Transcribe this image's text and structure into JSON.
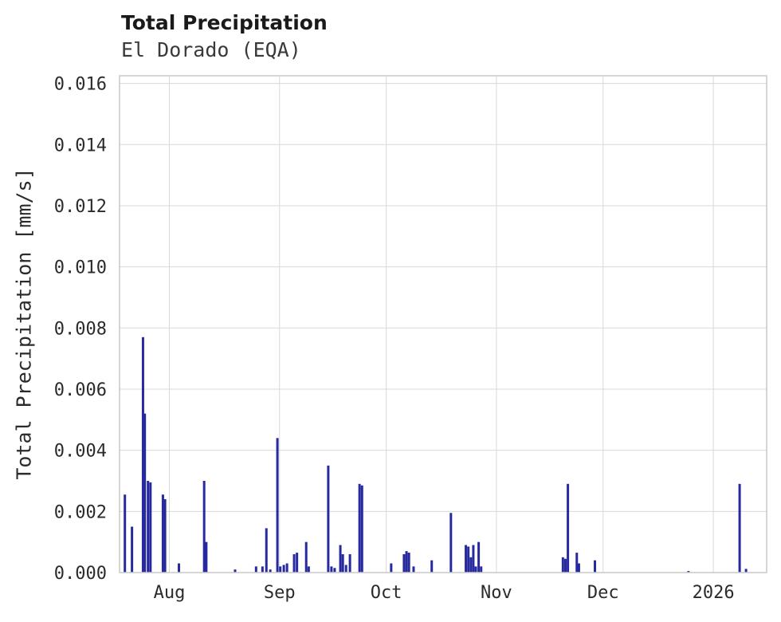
{
  "chart_data": {
    "type": "bar",
    "title": "Total Precipitation",
    "subtitle": "El Dorado (EQA)",
    "ylabel": "Total Precipitation [mm/s]",
    "xlabel": "",
    "ylim": [
      0,
      0.016
    ],
    "x_domain_days": [
      0,
      182
    ],
    "x_unit": "days (axis spans mid-Jul to mid-Jan; ticks at month starts)",
    "grid": true,
    "legend": "none",
    "colors": {
      "bar": "#262a9e",
      "grid": "#d9d9d9",
      "border": "#c9c9c9",
      "text": "#2b2b2b"
    },
    "x_ticks": [
      {
        "label": "Aug",
        "d": 14
      },
      {
        "label": "Sep",
        "d": 45
      },
      {
        "label": "Oct",
        "d": 75
      },
      {
        "label": "Nov",
        "d": 106
      },
      {
        "label": "Dec",
        "d": 136
      },
      {
        "label": "2026",
        "d": 167
      }
    ],
    "y_ticks": [
      {
        "label": "0.000",
        "v": 0.0
      },
      {
        "label": "0.002",
        "v": 0.002
      },
      {
        "label": "0.004",
        "v": 0.004
      },
      {
        "label": "0.006",
        "v": 0.006
      },
      {
        "label": "0.008",
        "v": 0.008
      },
      {
        "label": "0.010",
        "v": 0.01
      },
      {
        "label": "0.012",
        "v": 0.012
      },
      {
        "label": "0.014",
        "v": 0.014
      },
      {
        "label": "0.016",
        "v": 0.016
      }
    ],
    "points": [
      [
        1.5,
        0.00255
      ],
      [
        3.5,
        0.0015
      ],
      [
        6.6,
        0.0077
      ],
      [
        7.1,
        0.0052
      ],
      [
        8.0,
        0.003
      ],
      [
        8.7,
        0.00295
      ],
      [
        12.2,
        0.00255
      ],
      [
        12.8,
        0.0024
      ],
      [
        16.7,
        0.0003
      ],
      [
        23.8,
        0.003
      ],
      [
        24.4,
        0.001
      ],
      [
        32.5,
        0.0001
      ],
      [
        38.4,
        0.0002
      ],
      [
        40.2,
        0.0002
      ],
      [
        41.3,
        0.00145
      ],
      [
        42.4,
        0.0001
      ],
      [
        44.4,
        0.0044
      ],
      [
        45.2,
        0.0002
      ],
      [
        46.2,
        0.00025
      ],
      [
        47.1,
        0.0003
      ],
      [
        49.1,
        0.0006
      ],
      [
        49.9,
        0.00065
      ],
      [
        52.5,
        0.001
      ],
      [
        53.2,
        0.0002
      ],
      [
        58.7,
        0.0035
      ],
      [
        59.6,
        0.0002
      ],
      [
        60.5,
        0.00015
      ],
      [
        62.1,
        0.0009
      ],
      [
        62.8,
        0.0006
      ],
      [
        63.7,
        0.00025
      ],
      [
        64.8,
        0.0006
      ],
      [
        67.5,
        0.0029
      ],
      [
        68.2,
        0.00285
      ],
      [
        76.4,
        0.0003
      ],
      [
        80.0,
        0.0006
      ],
      [
        80.7,
        0.0007
      ],
      [
        81.4,
        0.00065
      ],
      [
        82.7,
        0.0002
      ],
      [
        87.8,
        0.0004
      ],
      [
        93.2,
        0.00195
      ],
      [
        97.4,
        0.0009
      ],
      [
        98.1,
        0.00085
      ],
      [
        98.8,
        0.0005
      ],
      [
        99.5,
        0.0009
      ],
      [
        100.2,
        0.0002
      ],
      [
        101.0,
        0.001
      ],
      [
        101.7,
        0.0002
      ],
      [
        124.7,
        0.0005
      ],
      [
        125.4,
        0.00045
      ],
      [
        126.1,
        0.0029
      ],
      [
        128.6,
        0.00065
      ],
      [
        129.2,
        0.0003
      ],
      [
        133.7,
        0.0004
      ],
      [
        160.0,
        5e-05
      ],
      [
        174.4,
        0.0029
      ],
      [
        176.2,
        0.00012
      ]
    ]
  }
}
